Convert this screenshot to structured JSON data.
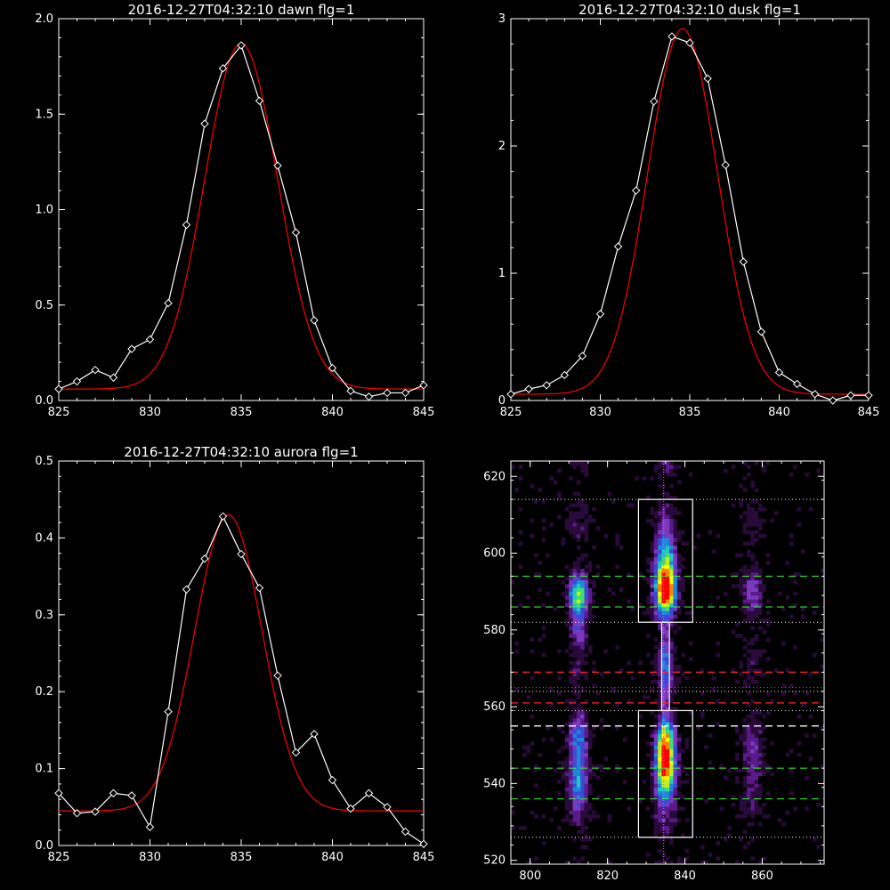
{
  "chart_data": [
    {
      "type": "line",
      "title": "2016-12-27T04:32:10 dawn flg=1",
      "xlim": [
        825,
        845
      ],
      "ylim": [
        0,
        2.0
      ],
      "xticks": [
        "825",
        "830",
        "835",
        "840",
        "845"
      ],
      "yticks": [
        "0.0",
        "0.5",
        "1.0",
        "1.5",
        "2.0"
      ],
      "xtick_values": [
        825,
        830,
        835,
        840,
        845
      ],
      "ytick_values": [
        0,
        0.5,
        1.0,
        1.5,
        2.0
      ],
      "data": {
        "x": [
          825,
          826,
          827,
          828,
          829,
          830,
          831,
          832,
          833,
          834,
          835,
          836,
          837,
          838,
          839,
          840,
          841,
          842,
          843,
          844,
          845
        ],
        "y": [
          0.06,
          0.1,
          0.16,
          0.12,
          0.27,
          0.32,
          0.51,
          0.92,
          1.45,
          1.74,
          1.86,
          1.57,
          1.23,
          0.88,
          0.42,
          0.17,
          0.05,
          0.02,
          0.04,
          0.04,
          0.08
        ]
      },
      "fit": {
        "amplitude": 1.81,
        "center": 835.0,
        "sigma": 2.0,
        "offset": 0.06
      },
      "colors": {
        "data": "#ffffff",
        "fit": "#ff0000"
      }
    },
    {
      "type": "line",
      "title": "2016-12-27T04:32:10 dusk flg=1",
      "xlim": [
        825,
        845
      ],
      "ylim": [
        0,
        3
      ],
      "xticks": [
        "825",
        "830",
        "835",
        "840",
        "845"
      ],
      "yticks": [
        "0",
        "1",
        "2",
        "3"
      ],
      "xtick_values": [
        825,
        830,
        835,
        840,
        845
      ],
      "ytick_values": [
        0,
        1,
        2,
        3
      ],
      "data": {
        "x": [
          825,
          826,
          827,
          828,
          829,
          830,
          831,
          832,
          833,
          834,
          835,
          836,
          837,
          838,
          839,
          840,
          841,
          842,
          843,
          844,
          845
        ],
        "y": [
          0.05,
          0.09,
          0.12,
          0.2,
          0.35,
          0.68,
          1.21,
          1.65,
          2.35,
          2.86,
          2.81,
          2.53,
          1.85,
          1.09,
          0.54,
          0.22,
          0.13,
          0.05,
          0.0,
          0.04,
          0.04
        ]
      },
      "fit": {
        "amplitude": 2.87,
        "center": 834.6,
        "sigma": 1.95,
        "offset": 0.05
      },
      "colors": {
        "data": "#ffffff",
        "fit": "#ff0000"
      }
    },
    {
      "type": "line",
      "title": "2016-12-27T04:32:10 aurora flg=1",
      "xlim": [
        825,
        845
      ],
      "ylim": [
        0,
        0.5
      ],
      "xticks": [
        "825",
        "830",
        "835",
        "840",
        "845"
      ],
      "yticks": [
        "0.0",
        "0.1",
        "0.2",
        "0.3",
        "0.4",
        "0.5"
      ],
      "xtick_values": [
        825,
        830,
        835,
        840,
        845
      ],
      "ytick_values": [
        0,
        0.1,
        0.2,
        0.3,
        0.4,
        0.5
      ],
      "data": {
        "x": [
          825,
          826,
          827,
          828,
          829,
          830,
          831,
          832,
          833,
          834,
          835,
          836,
          837,
          838,
          839,
          840,
          841,
          842,
          843,
          844,
          845
        ],
        "y": [
          0.068,
          0.042,
          0.044,
          0.068,
          0.065,
          0.024,
          0.174,
          0.333,
          0.373,
          0.428,
          0.379,
          0.335,
          0.221,
          0.121,
          0.145,
          0.085,
          0.048,
          0.068,
          0.05,
          0.018,
          0.002
        ]
      },
      "fit": {
        "amplitude": 0.385,
        "center": 834.3,
        "sigma": 1.85,
        "offset": 0.045
      },
      "colors": {
        "data": "#ffffff",
        "fit": "#ff0000"
      }
    },
    {
      "type": "heatmap",
      "xlim": [
        795,
        876
      ],
      "ylim": [
        519,
        624
      ],
      "xticks": [
        "800",
        "820",
        "840",
        "860"
      ],
      "yticks": [
        "520",
        "540",
        "560",
        "580",
        "600",
        "620"
      ],
      "xtick_values": [
        800,
        820,
        840,
        860
      ],
      "ytick_values": [
        520,
        540,
        560,
        580,
        600,
        620
      ],
      "colormap": [
        "#000000",
        "#2a0a3a",
        "#5a1a8a",
        "#7a3ac0",
        "#3a4ad8",
        "#1a8ad8",
        "#20c8c0",
        "#40e070",
        "#c0f020",
        "#ffff00",
        "#ff8000",
        "#ff0000"
      ],
      "blobs": [
        {
          "x": 835.0,
          "y": 591.0,
          "sx": 1.8,
          "sy": 4.5,
          "peak": 1.0
        },
        {
          "x": 835.0,
          "y": 543.0,
          "sx": 1.8,
          "sy": 4.5,
          "peak": 0.85
        },
        {
          "x": 835.0,
          "y": 551.0,
          "sx": 1.6,
          "sy": 4.0,
          "peak": 0.55
        },
        {
          "x": 835.0,
          "y": 600.0,
          "sx": 1.8,
          "sy": 4.0,
          "peak": 0.4
        },
        {
          "x": 835.0,
          "y": 570.0,
          "sx": 0.9,
          "sy": 9.0,
          "peak": 0.3
        },
        {
          "x": 812.5,
          "y": 589.0,
          "sx": 1.7,
          "sy": 3.5,
          "peak": 0.6
        },
        {
          "x": 812.5,
          "y": 580.0,
          "sx": 1.4,
          "sy": 3.0,
          "peak": 0.3
        },
        {
          "x": 812.5,
          "y": 541.0,
          "sx": 1.7,
          "sy": 5.0,
          "peak": 0.45
        },
        {
          "x": 812.5,
          "y": 553.0,
          "sx": 1.5,
          "sy": 4.0,
          "peak": 0.3
        },
        {
          "x": 857.5,
          "y": 590.0,
          "sx": 1.8,
          "sy": 4.0,
          "peak": 0.22
        },
        {
          "x": 857.5,
          "y": 545.0,
          "sx": 1.8,
          "sy": 7.0,
          "peak": 0.18
        }
      ],
      "boxes": [
        {
          "x0": 828,
          "x1": 842,
          "y0": 582,
          "y1": 614
        },
        {
          "x0": 828,
          "x1": 842,
          "y0": 526,
          "y1": 559
        },
        {
          "x0": 834,
          "x1": 836,
          "y0": 559,
          "y1": 582
        }
      ],
      "hlines_white_dotted": [
        614,
        582,
        559,
        526,
        564
      ],
      "vline_magenta_dotted": 834.5,
      "hlines_green_dashed": [
        594,
        586,
        544,
        536
      ],
      "hlines_red_dashed": [
        569,
        561
      ],
      "hlines_white_dashed": [
        555
      ],
      "hlines_red_dotted": [
        565
      ]
    }
  ]
}
